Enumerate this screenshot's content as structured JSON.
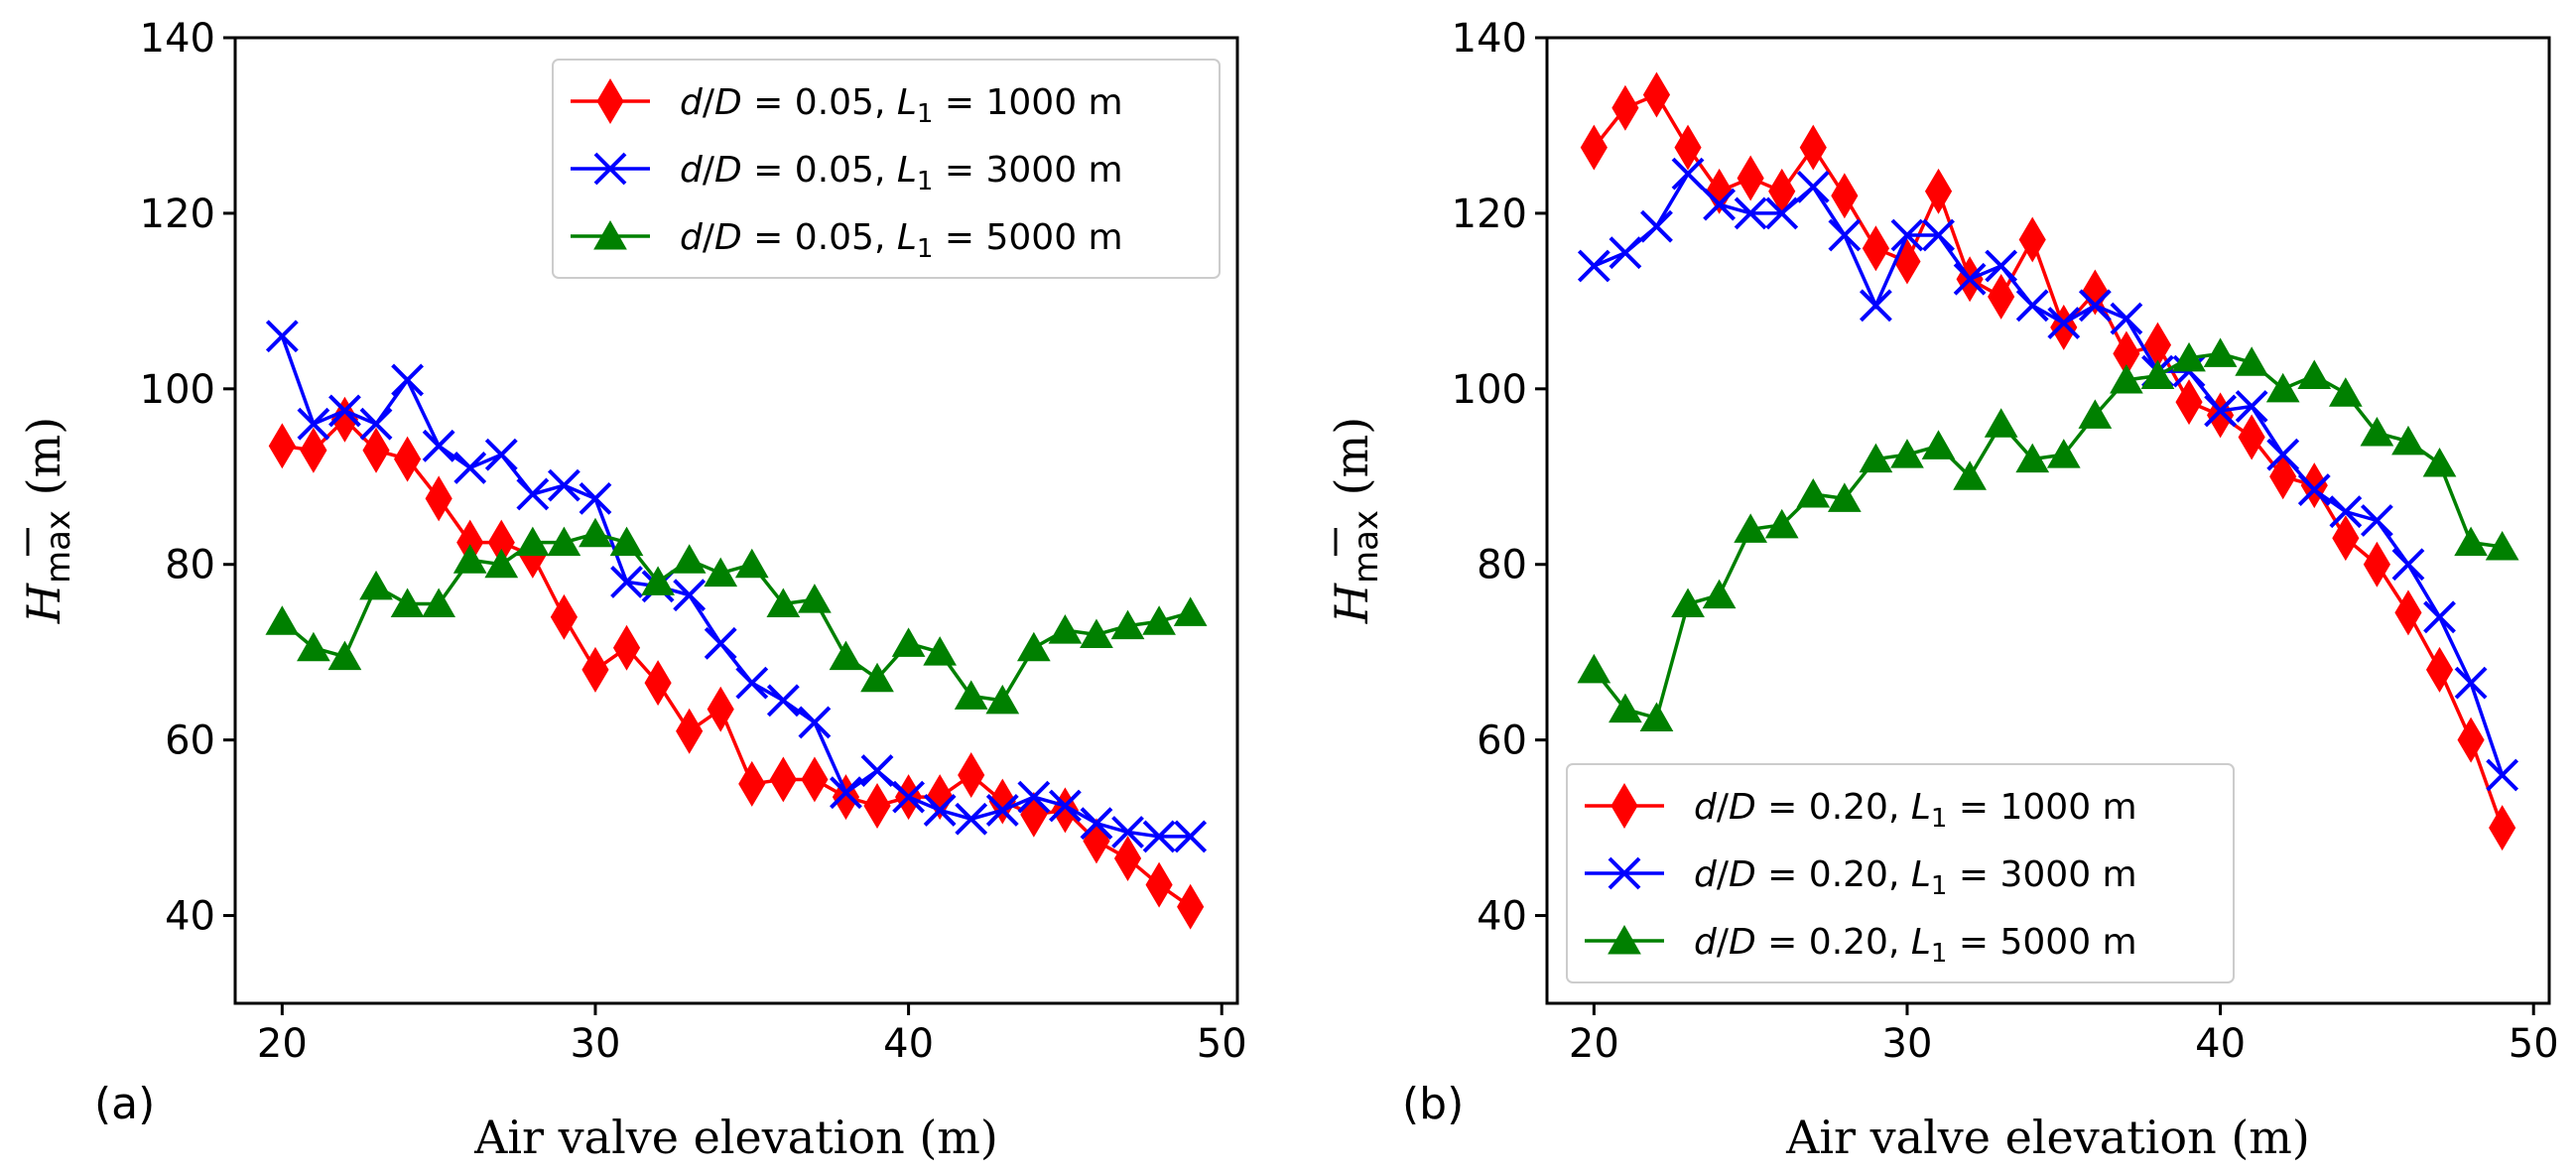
{
  "chart_data": [
    {
      "type": "line",
      "panel_label": "(a)",
      "xlabel": "Air valve elevation (m)",
      "ylabel": "H̄max (m)",
      "ylabel_parts": {
        "symbol": "H",
        "sub": "max",
        "unit": " (m)"
      },
      "xlim": [
        18.5,
        50.5
      ],
      "ylim": [
        30,
        140
      ],
      "xticks": [
        "20",
        "30",
        "40",
        "50"
      ],
      "yticks": [
        "40",
        "60",
        "80",
        "100",
        "120",
        "140"
      ],
      "legend_position": "top-right",
      "x": [
        20,
        21,
        22,
        23,
        24,
        25,
        26,
        27,
        28,
        29,
        30,
        31,
        32,
        33,
        34,
        35,
        36,
        37,
        38,
        39,
        40,
        41,
        42,
        43,
        44,
        45,
        46,
        47,
        48,
        49
      ],
      "series": [
        {
          "name": "d/D = 0.05, L1 = 1000 m",
          "ratio_value": "0.05",
          "length_value": "1000 m",
          "color": "#ff0000",
          "marker": "diamond",
          "values": [
            93.5,
            93,
            96.5,
            93,
            92,
            87.5,
            82.5,
            82.5,
            81,
            74,
            68,
            70.5,
            66.5,
            61,
            63.5,
            55,
            55.5,
            55.5,
            53.5,
            52.5,
            53.5,
            53.5,
            56,
            53,
            51.5,
            52,
            48.5,
            46.5,
            43.5,
            41
          ]
        },
        {
          "name": "d/D = 0.05, L1 = 3000 m",
          "ratio_value": "0.05",
          "length_value": "3000 m",
          "color": "#0000ff",
          "marker": "x",
          "values": [
            106,
            96,
            97.5,
            96,
            101,
            93.5,
            91,
            92.5,
            88,
            89,
            87.5,
            78,
            77.5,
            76.5,
            71,
            66.5,
            64.5,
            62,
            54,
            56.5,
            53.5,
            52,
            51,
            52,
            53.5,
            52.5,
            50.5,
            49.5,
            49,
            49
          ]
        },
        {
          "name": "d/D = 0.05, L1 = 5000 m",
          "ratio_value": "0.05",
          "length_value": "5000 m",
          "color": "#008000",
          "marker": "triangle",
          "values": [
            73.5,
            70.5,
            69.5,
            77.5,
            75.5,
            75.5,
            80.5,
            80,
            82.5,
            82.5,
            83.5,
            82.5,
            78,
            80.5,
            79,
            80,
            75.5,
            76,
            69.5,
            67,
            71,
            70,
            65,
            64.5,
            70.5,
            72.5,
            72,
            73,
            73.5,
            74.5
          ]
        }
      ]
    },
    {
      "type": "line",
      "panel_label": "(b)",
      "xlabel": "Air valve elevation (m)",
      "ylabel": "H̄max (m)",
      "ylabel_parts": {
        "symbol": "H",
        "sub": "max",
        "unit": " (m)"
      },
      "xlim": [
        18.5,
        50.5
      ],
      "ylim": [
        30,
        140
      ],
      "xticks": [
        "20",
        "30",
        "40",
        "50"
      ],
      "yticks": [
        "40",
        "60",
        "80",
        "100",
        "120",
        "140"
      ],
      "legend_position": "bottom-left",
      "x": [
        20,
        21,
        22,
        23,
        24,
        25,
        26,
        27,
        28,
        29,
        30,
        31,
        32,
        33,
        34,
        35,
        36,
        37,
        38,
        39,
        40,
        41,
        42,
        43,
        44,
        45,
        46,
        47,
        48,
        49
      ],
      "series": [
        {
          "name": "d/D = 0.20, L1 = 1000 m",
          "ratio_value": "0.20",
          "length_value": "1000 m",
          "color": "#ff0000",
          "marker": "diamond",
          "values": [
            127.5,
            132,
            133.5,
            127.5,
            122.5,
            124,
            122.5,
            127.5,
            122,
            116,
            114.5,
            122.5,
            112.5,
            110.5,
            117,
            107,
            111,
            104,
            105,
            98.5,
            97,
            94.5,
            90,
            89,
            83,
            80,
            74.5,
            68,
            60,
            50
          ]
        },
        {
          "name": "d/D = 0.20, L1 = 3000 m",
          "ratio_value": "0.20",
          "length_value": "3000 m",
          "color": "#0000ff",
          "marker": "x",
          "values": [
            114,
            115.5,
            118.5,
            124.5,
            121,
            120,
            120,
            123,
            117.5,
            109.5,
            117.5,
            117.5,
            112.5,
            114,
            109.5,
            107.5,
            109.5,
            108,
            102,
            102,
            97.5,
            98,
            92.5,
            88.5,
            86,
            85,
            80,
            74,
            66.5,
            56
          ]
        },
        {
          "name": "d/D = 0.20, L1 = 5000 m",
          "ratio_value": "0.20",
          "length_value": "5000 m",
          "color": "#008000",
          "marker": "triangle",
          "values": [
            68,
            63.5,
            62.5,
            75.5,
            76.5,
            84,
            84.5,
            88,
            87.5,
            92,
            92.5,
            93.5,
            90,
            96,
            92,
            92.5,
            97,
            101,
            101.5,
            103.5,
            104,
            103,
            100,
            101.5,
            99.5,
            95,
            94,
            91.5,
            82.5,
            82
          ]
        }
      ]
    }
  ]
}
